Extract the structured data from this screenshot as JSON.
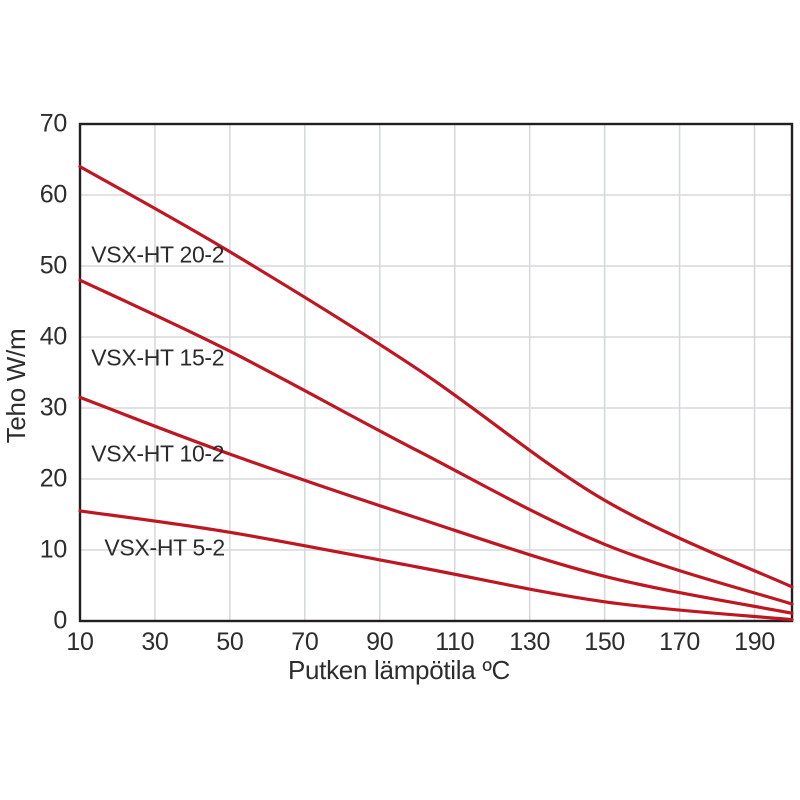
{
  "page": {
    "background": "#ffffff"
  },
  "chart_data": {
    "type": "line",
    "title": "",
    "xlabel": "Putken lämpötila ºC",
    "ylabel": "Teho W/m",
    "xlim": [
      10,
      200
    ],
    "ylim": [
      0,
      70
    ],
    "x_ticks": [
      10,
      30,
      50,
      70,
      90,
      110,
      130,
      150,
      170,
      190
    ],
    "y_ticks": [
      0,
      10,
      20,
      30,
      40,
      50,
      60,
      70
    ],
    "grid": true,
    "legend_position": "inline-labels",
    "colors": {
      "line": "#bf1722",
      "grid": "#d5d8da",
      "axis": "#231f20",
      "text": "#2d2d2d"
    },
    "series": [
      {
        "name": "VSX-HT 20-2",
        "points": [
          [
            10,
            64
          ],
          [
            50,
            52
          ],
          [
            100,
            35.5
          ],
          [
            150,
            17
          ],
          [
            200,
            4.8
          ]
        ],
        "label_pos": [
          13,
          51.5
        ]
      },
      {
        "name": "VSX-HT 15-2",
        "points": [
          [
            10,
            48
          ],
          [
            50,
            38
          ],
          [
            100,
            24
          ],
          [
            150,
            10.8
          ],
          [
            200,
            2.4
          ]
        ],
        "label_pos": [
          13,
          37
        ]
      },
      {
        "name": "VSX-HT 10-2",
        "points": [
          [
            10,
            31.5
          ],
          [
            50,
            23.5
          ],
          [
            100,
            14.5
          ],
          [
            150,
            6.3
          ],
          [
            200,
            1.1
          ]
        ],
        "label_pos": [
          13,
          23.5
        ]
      },
      {
        "name": "VSX-HT 5-2",
        "points": [
          [
            10,
            15.5
          ],
          [
            50,
            12.5
          ],
          [
            100,
            7.6
          ],
          [
            150,
            2.7
          ],
          [
            200,
            0.2
          ]
        ],
        "label_pos": [
          16.5,
          10.3
        ]
      }
    ]
  }
}
